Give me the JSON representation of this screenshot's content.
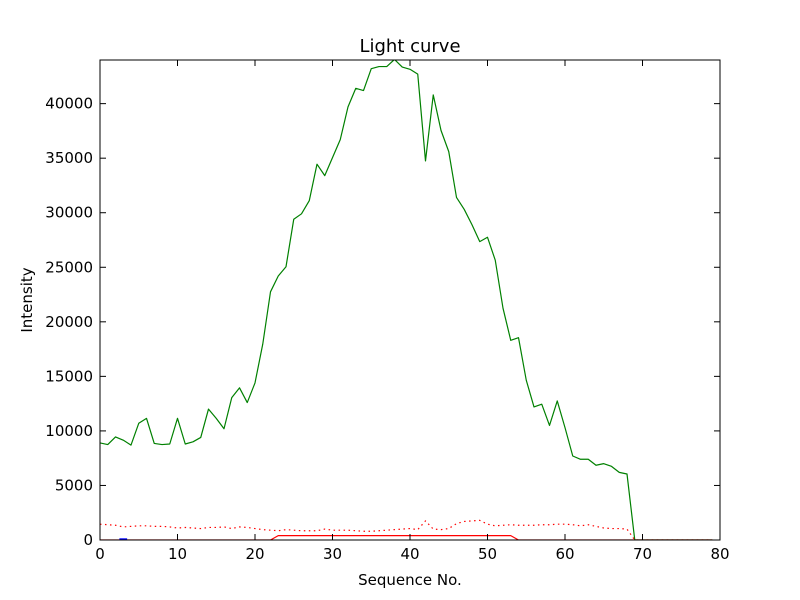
{
  "chart_data": {
    "type": "line",
    "title": "Light curve",
    "xlabel": "Sequence No.",
    "ylabel": "Intensity",
    "xlim": [
      0,
      80
    ],
    "ylim": [
      0,
      44000
    ],
    "xticks": [
      0,
      10,
      20,
      30,
      40,
      50,
      60,
      70,
      80
    ],
    "yticks": [
      0,
      5000,
      10000,
      15000,
      20000,
      25000,
      30000,
      35000,
      40000
    ],
    "grid": false,
    "legend": "none",
    "series": [
      {
        "color": "#008000",
        "style": "solid",
        "x": [
          0,
          1,
          2,
          3,
          4,
          5,
          6,
          7,
          8,
          9,
          10,
          11,
          12,
          13,
          14,
          15,
          16,
          17,
          18,
          19,
          20,
          21,
          22,
          23,
          24,
          25,
          26,
          27,
          28,
          29,
          30,
          31,
          32,
          33,
          34,
          35,
          36,
          37,
          38,
          39,
          40,
          41,
          42,
          43,
          44,
          45,
          46,
          47,
          48,
          49,
          50,
          51,
          52,
          53,
          54,
          55,
          56,
          57,
          58,
          59,
          60,
          61,
          62,
          63,
          64,
          65,
          66,
          67,
          68,
          69,
          70,
          71,
          72,
          73,
          74,
          75,
          76,
          77,
          78,
          79
        ],
        "values": [
          8900,
          8750,
          9450,
          9150,
          8700,
          10700,
          11150,
          8850,
          8750,
          8800,
          11150,
          8800,
          9000,
          9400,
          12000,
          11150,
          10200,
          13050,
          13950,
          12600,
          14400,
          17950,
          22750,
          24200,
          25050,
          29400,
          29900,
          31100,
          34450,
          33400,
          35050,
          36700,
          39700,
          41400,
          41200,
          43200,
          43400,
          43400,
          44050,
          43350,
          43150,
          42700,
          34750,
          40800,
          37550,
          35600,
          31400,
          30300,
          28900,
          27350,
          27750,
          25650,
          21250,
          18300,
          18550,
          14650,
          12200,
          12450,
          10500,
          12750,
          10300,
          7700,
          7400,
          7400,
          6850,
          7000,
          6750,
          6200,
          6050,
          0,
          0,
          0,
          0,
          0,
          0,
          0,
          0,
          0,
          0,
          0
        ]
      },
      {
        "color": "#ff0000",
        "style": "dotted",
        "x": [
          0,
          1,
          2,
          3,
          4,
          5,
          6,
          7,
          8,
          9,
          10,
          11,
          12,
          13,
          14,
          15,
          16,
          17,
          18,
          19,
          20,
          21,
          22,
          23,
          24,
          25,
          26,
          27,
          28,
          29,
          30,
          31,
          32,
          33,
          34,
          35,
          36,
          37,
          38,
          39,
          40,
          41,
          42,
          43,
          44,
          45,
          46,
          47,
          48,
          49,
          50,
          51,
          52,
          53,
          54,
          55,
          56,
          57,
          58,
          59,
          60,
          61,
          62,
          63,
          64,
          65,
          66,
          67,
          68,
          69,
          70,
          71,
          72,
          73,
          74,
          75,
          76,
          77,
          78,
          79
        ],
        "values": [
          1450,
          1400,
          1350,
          1200,
          1250,
          1300,
          1300,
          1250,
          1250,
          1200,
          1100,
          1150,
          1100,
          1050,
          1150,
          1150,
          1200,
          1050,
          1200,
          1150,
          1050,
          950,
          900,
          850,
          950,
          900,
          850,
          850,
          850,
          1000,
          900,
          900,
          900,
          850,
          800,
          800,
          850,
          900,
          950,
          1000,
          1050,
          950,
          1750,
          1000,
          950,
          1050,
          1500,
          1700,
          1750,
          1800,
          1450,
          1300,
          1350,
          1400,
          1350,
          1350,
          1350,
          1400,
          1400,
          1450,
          1450,
          1400,
          1300,
          1400,
          1250,
          1100,
          1050,
          1050,
          1000,
          0,
          0,
          0,
          0,
          0,
          0,
          0,
          0,
          0,
          0,
          0
        ]
      },
      {
        "color": "#ff0000",
        "style": "solid",
        "x": [
          0,
          22,
          23,
          53,
          54,
          79
        ],
        "values": [
          0,
          0,
          400,
          400,
          0,
          0
        ]
      },
      {
        "color": "#0000ff",
        "style": "solid",
        "x": [
          2.5,
          3.5
        ],
        "values": [
          100,
          100
        ]
      }
    ]
  }
}
